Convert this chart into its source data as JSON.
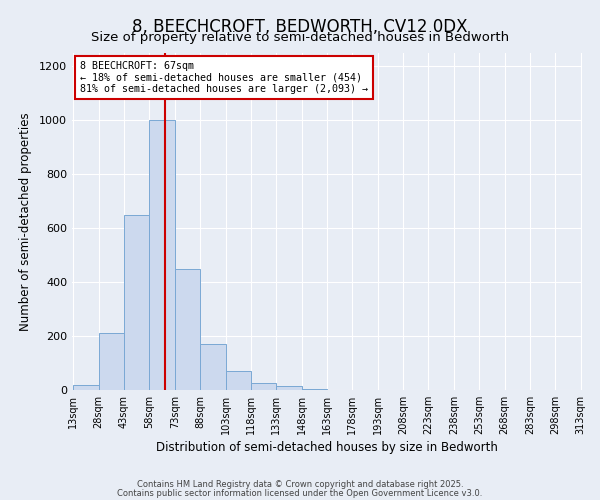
{
  "title1": "8, BEECHCROFT, BEDWORTH, CV12 0DX",
  "title2": "Size of property relative to semi-detached houses in Bedworth",
  "xlabel": "Distribution of semi-detached houses by size in Bedworth",
  "ylabel": "Number of semi-detached properties",
  "bin_edges": [
    13,
    28,
    43,
    58,
    73,
    88,
    103,
    118,
    133,
    148,
    163,
    178,
    193,
    208,
    223,
    238,
    253,
    268,
    283,
    298,
    313
  ],
  "bar_heights": [
    20,
    210,
    650,
    1000,
    450,
    170,
    70,
    25,
    15,
    5,
    0,
    0,
    0,
    0,
    0,
    0,
    0,
    0,
    0,
    0
  ],
  "bar_color": "#ccd9ee",
  "bar_edgecolor": "#7aa8d4",
  "vline_x": 67,
  "vline_color": "#cc0000",
  "annotation_title": "8 BEECHCROFT: 67sqm",
  "annotation_line1": "← 18% of semi-detached houses are smaller (454)",
  "annotation_line2": "81% of semi-detached houses are larger (2,093) →",
  "annotation_box_color": "#cc0000",
  "ylim": [
    0,
    1250
  ],
  "yticks": [
    0,
    200,
    400,
    600,
    800,
    1000,
    1200
  ],
  "tick_labels": [
    "13sqm",
    "28sqm",
    "43sqm",
    "58sqm",
    "73sqm",
    "88sqm",
    "103sqm",
    "118sqm",
    "133sqm",
    "148sqm",
    "163sqm",
    "178sqm",
    "193sqm",
    "208sqm",
    "223sqm",
    "238sqm",
    "253sqm",
    "268sqm",
    "283sqm",
    "298sqm",
    "313sqm"
  ],
  "background_color": "#e8edf5",
  "plot_background_color": "#e8edf5",
  "footer1": "Contains HM Land Registry data © Crown copyright and database right 2025.",
  "footer2": "Contains public sector information licensed under the Open Government Licence v3.0.",
  "grid_color": "#ffffff",
  "title1_fontsize": 12,
  "title2_fontsize": 9.5,
  "ylabel_fontsize": 8.5,
  "xlabel_fontsize": 8.5
}
